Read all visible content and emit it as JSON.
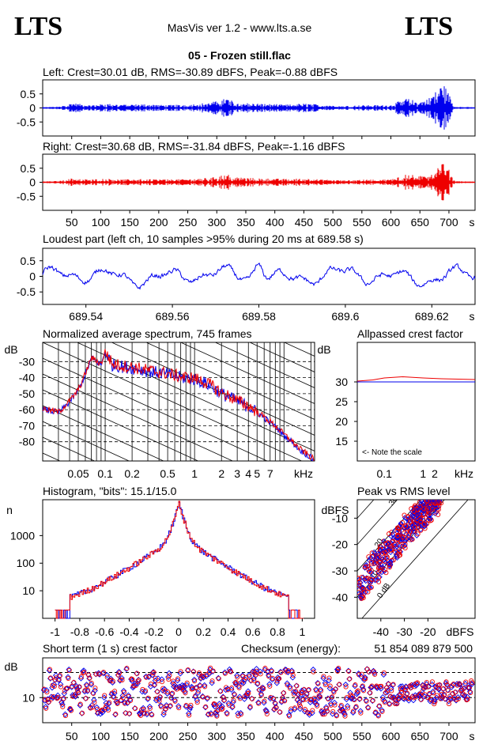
{
  "header": {
    "logo_left": "LTS",
    "logo_right": "LTS",
    "app_title": "MasVis ver 1.2 - www.lts.a.se",
    "file_title": "05 - Frozen still.flac"
  },
  "colors": {
    "left": "#0000ee",
    "right": "#ee0000",
    "grid": "#000000"
  },
  "chart_data": [
    {
      "id": "left-waveform",
      "type": "line",
      "title": "Left: Crest=30.01 dB, RMS=-30.89 dBFS, Peak=-0.88 dBFS",
      "xlim": [
        0,
        745
      ],
      "ylim": [
        -1,
        1
      ],
      "yticks": [
        "0.5",
        "0",
        "-0.5"
      ],
      "series": [
        {
          "color": "#0000ee",
          "envelope": [
            [
              5,
              0.03
            ],
            [
              30,
              0.05
            ],
            [
              50,
              0.18
            ],
            [
              80,
              0.1
            ],
            [
              110,
              0.15
            ],
            [
              140,
              0.12
            ],
            [
              180,
              0.14
            ],
            [
              210,
              0.1
            ],
            [
              250,
              0.12
            ],
            [
              290,
              0.2
            ],
            [
              318,
              0.35
            ],
            [
              330,
              0.22
            ],
            [
              350,
              0.18
            ],
            [
              380,
              0.15
            ],
            [
              420,
              0.12
            ],
            [
              450,
              0.16
            ],
            [
              480,
              0.12
            ],
            [
              520,
              0.08
            ],
            [
              560,
              0.1
            ],
            [
              600,
              0.1
            ],
            [
              625,
              0.35
            ],
            [
              650,
              0.22
            ],
            [
              665,
              0.35
            ],
            [
              680,
              0.65
            ],
            [
              690,
              0.9
            ],
            [
              700,
              0.5
            ],
            [
              710,
              0.05
            ],
            [
              745,
              0.02
            ]
          ]
        }
      ]
    },
    {
      "id": "right-waveform",
      "type": "line",
      "title": "Right: Crest=30.68 dB, RMS=-31.84 dBFS, Peak=-1.16 dBFS",
      "xlim": [
        0,
        745
      ],
      "ylim": [
        -1,
        1
      ],
      "yticks": [
        "0.5",
        "0",
        "-0.5"
      ],
      "xticks": [
        "50",
        "100",
        "150",
        "200",
        "250",
        "300",
        "350",
        "400",
        "450",
        "500",
        "550",
        "600",
        "650",
        "700"
      ],
      "xunit": "s",
      "series": [
        {
          "color": "#ee0000",
          "envelope": [
            [
              5,
              0.03
            ],
            [
              30,
              0.05
            ],
            [
              50,
              0.14
            ],
            [
              80,
              0.1
            ],
            [
              110,
              0.13
            ],
            [
              140,
              0.1
            ],
            [
              180,
              0.12
            ],
            [
              210,
              0.1
            ],
            [
              250,
              0.11
            ],
            [
              290,
              0.16
            ],
            [
              318,
              0.3
            ],
            [
              330,
              0.2
            ],
            [
              350,
              0.16
            ],
            [
              380,
              0.14
            ],
            [
              420,
              0.12
            ],
            [
              450,
              0.14
            ],
            [
              480,
              0.1
            ],
            [
              520,
              0.07
            ],
            [
              560,
              0.1
            ],
            [
              600,
              0.1
            ],
            [
              625,
              0.3
            ],
            [
              650,
              0.22
            ],
            [
              665,
              0.3
            ],
            [
              680,
              0.55
            ],
            [
              690,
              0.8
            ],
            [
              700,
              0.45
            ],
            [
              710,
              0.05
            ],
            [
              745,
              0.02
            ]
          ]
        }
      ]
    },
    {
      "id": "loudest-part",
      "type": "line",
      "title": "Loudest part (left  ch, 10 samples >95% during 20 ms at 689.58 s)",
      "xlim": [
        689.53,
        689.63
      ],
      "ylim": [
        -0.9,
        0.9
      ],
      "yticks": [
        "0.5",
        "0",
        "-0.5"
      ],
      "xticks": [
        "689.54",
        "689.56",
        "689.58",
        "689.6",
        "689.62"
      ],
      "xunit": "s"
    },
    {
      "id": "avg-spectrum",
      "type": "line",
      "title": "Normalized average spectrum, 745 frames",
      "ylabel": "dB",
      "ylim": [
        -92,
        -18
      ],
      "yticks": [
        "-30",
        "-40",
        "-50",
        "-60",
        "-70",
        "-80"
      ],
      "xticks": [
        "0.05",
        "0.1",
        "0.2",
        "0.5",
        "1",
        "2",
        "3",
        "4",
        "5",
        "7"
      ],
      "xunit": "kHz",
      "xscale": "log",
      "xlim": [
        0.02,
        22
      ],
      "shape": [
        [
          0.02,
          -60
        ],
        [
          0.03,
          -62
        ],
        [
          0.04,
          -55
        ],
        [
          0.05,
          -48
        ],
        [
          0.07,
          -28
        ],
        [
          0.09,
          -32
        ],
        [
          0.1,
          -24
        ],
        [
          0.12,
          -32
        ],
        [
          0.15,
          -33
        ],
        [
          0.2,
          -34
        ],
        [
          0.3,
          -36
        ],
        [
          0.5,
          -38
        ],
        [
          0.7,
          -40
        ],
        [
          1,
          -41
        ],
        [
          1.5,
          -45
        ],
        [
          2,
          -50
        ],
        [
          3,
          -55
        ],
        [
          4,
          -58
        ],
        [
          5,
          -62
        ],
        [
          7,
          -68
        ],
        [
          10,
          -76
        ],
        [
          15,
          -85
        ],
        [
          22,
          -92
        ]
      ]
    },
    {
      "id": "allpass-crest",
      "type": "line",
      "title": "Allpassed crest factor",
      "ylabel": "dB",
      "ylim": [
        10,
        40
      ],
      "yticks": [
        "30",
        "25",
        "20",
        "15"
      ],
      "xticks": [
        "0.1",
        "1",
        "2"
      ],
      "xunit": "kHz",
      "xscale": "log",
      "xlim": [
        0.02,
        22
      ],
      "series": [
        {
          "color": "#ee0000",
          "values": [
            [
              0.02,
              30.2
            ],
            [
              0.05,
              30.5
            ],
            [
              0.1,
              31.0
            ],
            [
              0.3,
              31.3
            ],
            [
              1,
              31.0
            ],
            [
              3,
              30.8
            ],
            [
              22,
              30.6
            ]
          ]
        },
        {
          "color": "#0000ee",
          "values": [
            [
              0.02,
              30.0
            ],
            [
              22,
              30.0
            ]
          ]
        }
      ],
      "annotation": "<- Note the scale"
    },
    {
      "id": "histogram",
      "type": "line",
      "title": "Histogram, \"bits\": 15.1/15.0",
      "ylabel": "n",
      "yscale": "log",
      "ylim": [
        1,
        20000
      ],
      "yticks": [
        "1000",
        "100",
        "10"
      ],
      "xticks": [
        "-1",
        "-0.8",
        "-0.6",
        "-0.4",
        "-0.2",
        "0",
        "0.2",
        "0.4",
        "0.6",
        "0.8",
        "1"
      ],
      "xlim": [
        -1.1,
        1.1
      ]
    },
    {
      "id": "peak-vs-rms",
      "type": "scatter",
      "title": "Peak vs RMS level",
      "ylabel": "dBFS",
      "xlabel": "dBFS",
      "xlim": [
        -50,
        0
      ],
      "ylim": [
        -48,
        -3
      ],
      "yticks": [
        "-10",
        "-20",
        "-30",
        "-40"
      ],
      "xticks": [
        "-40",
        "-30",
        "-20"
      ],
      "diagonal_labels": [
        "40",
        "30",
        "20",
        "10",
        "0 dB"
      ],
      "cluster": {
        "rms_range": [
          -50,
          -15
        ],
        "crest_range": [
          5,
          22
        ]
      }
    },
    {
      "id": "short-term-crest",
      "type": "scatter",
      "title": "Short term (1 s) crest factor",
      "ylabel": "dB",
      "yscale": "log",
      "ylim": [
        5,
        30
      ],
      "yticks": [
        "10"
      ],
      "xticks": [
        "50",
        "100",
        "150",
        "200",
        "250",
        "300",
        "350",
        "400",
        "450",
        "500",
        "550",
        "600",
        "650",
        "700"
      ],
      "xunit": "s",
      "xlim": [
        0,
        745
      ],
      "checksum_label": "Checksum (energy):",
      "checksum_value": "51 854 089 879 500"
    }
  ]
}
